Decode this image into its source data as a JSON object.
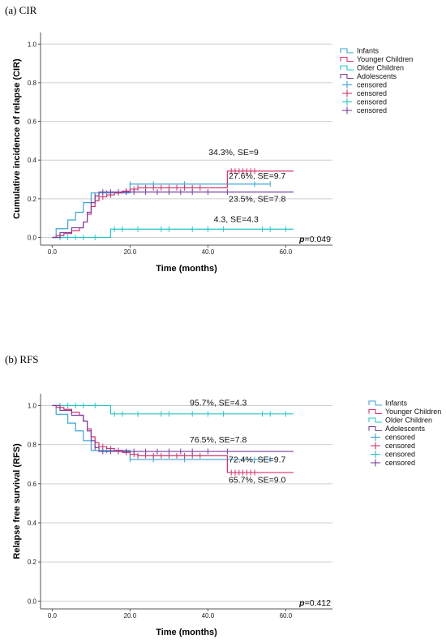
{
  "colors": {
    "infants": "#3aa6d6",
    "younger": "#d6336c",
    "older": "#26c6c6",
    "adolescents": "#7a3fa0",
    "grid": "#cfcfcf",
    "axis": "#555555"
  },
  "chart_data": [
    {
      "type": "line",
      "panel_label": "(a) CIR",
      "xlabel": "Time (months)",
      "ylabel": "Cumulative incidence of relapse (CIR)",
      "xlim": [
        -3,
        72
      ],
      "ylim": [
        -0.04,
        1.06
      ],
      "xticks": [
        "0.0",
        "20.0",
        "40.0",
        "60.0"
      ],
      "xtick_values": [
        0,
        20,
        40,
        60
      ],
      "yticks": [
        "0.0",
        "0.2",
        "0.4",
        "0.6",
        "0.8",
        "1.0"
      ],
      "ytick_values": [
        0,
        0.2,
        0.4,
        0.6,
        0.8,
        1.0
      ],
      "grid": "horizontal",
      "legend_position": "top-right",
      "legend": [
        {
          "label": "Infants",
          "kind": "line",
          "color_key": "infants"
        },
        {
          "label": "Younger Children",
          "kind": "line",
          "color_key": "younger"
        },
        {
          "label": "Older Children",
          "kind": "line",
          "color_key": "older"
        },
        {
          "label": "Adolescents",
          "kind": "line",
          "color_key": "adolescents"
        },
        {
          "label": "censored",
          "kind": "cross",
          "color_key": "infants"
        },
        {
          "label": "censored",
          "kind": "cross",
          "color_key": "younger"
        },
        {
          "label": "censored",
          "kind": "cross",
          "color_key": "older"
        },
        {
          "label": "censored",
          "kind": "cross",
          "color_key": "adolescents"
        }
      ],
      "series": [
        {
          "name": "Infants",
          "color_key": "infants",
          "x": [
            0,
            1,
            4,
            6,
            8,
            10,
            12,
            20,
            45,
            56
          ],
          "y": [
            0,
            0.045,
            0.09,
            0.13,
            0.18,
            0.23,
            0.23,
            0.276,
            0.276,
            0.276
          ],
          "censored_x": [
            14,
            20,
            26,
            34,
            45,
            52,
            56
          ]
        },
        {
          "name": "Younger Children",
          "color_key": "younger",
          "x": [
            0,
            1,
            3,
            5,
            7,
            8,
            9,
            10,
            11,
            12,
            14,
            16,
            18,
            20,
            22,
            35,
            45,
            62
          ],
          "y": [
            0,
            0.01,
            0.02,
            0.035,
            0.05,
            0.08,
            0.12,
            0.16,
            0.19,
            0.21,
            0.22,
            0.23,
            0.24,
            0.25,
            0.257,
            0.257,
            0.343,
            0.343
          ],
          "censored_x": [
            13,
            15,
            17,
            19,
            21,
            22,
            24,
            26,
            28,
            30,
            32,
            34,
            36,
            38,
            46,
            47,
            48,
            49,
            50,
            51,
            52
          ]
        },
        {
          "name": "Older Children",
          "color_key": "older",
          "x": [
            0,
            15,
            62
          ],
          "y": [
            0,
            0.043,
            0.043
          ],
          "censored_x": [
            2,
            4,
            6,
            8,
            11,
            16,
            18,
            22,
            28,
            30,
            36,
            40,
            44,
            54,
            56,
            60
          ]
        },
        {
          "name": "Adolescents",
          "color_key": "adolescents",
          "x": [
            0,
            2,
            5,
            8,
            9,
            10,
            11,
            12,
            20,
            62
          ],
          "y": [
            0,
            0.025,
            0.05,
            0.08,
            0.13,
            0.18,
            0.215,
            0.235,
            0.235,
            0.235
          ],
          "censored_x": [
            11,
            13,
            15,
            17,
            19,
            21,
            24,
            27,
            30,
            33,
            36,
            40,
            45
          ]
        }
      ],
      "annotations": [
        {
          "text": "34.3%, SE=9",
          "x": 53,
          "y": 0.425
        },
        {
          "text": "27.6%, SE=9.7",
          "x": 60,
          "y": 0.305
        },
        {
          "text": "23.5%, SE=7.8",
          "x": 60,
          "y": 0.185
        },
        {
          "text": "4.3, SE=4.3",
          "x": 53,
          "y": 0.08
        }
      ],
      "p_value": {
        "label": "p",
        "text": "=0.049"
      }
    },
    {
      "type": "line",
      "panel_label": "(b) RFS",
      "xlabel": "Time (months)",
      "ylabel": "Relapse free survival (RFS)",
      "xlim": [
        -3,
        72
      ],
      "ylim": [
        -0.04,
        1.06
      ],
      "xticks": [
        "0.0",
        "20.0",
        "40.0",
        "60.0"
      ],
      "xtick_values": [
        0,
        20,
        40,
        60
      ],
      "yticks": [
        "0.0",
        "0.2",
        "0.4",
        "0.6",
        "0.8",
        "1.0"
      ],
      "ytick_values": [
        0,
        0.2,
        0.4,
        0.6,
        0.8,
        1.0
      ],
      "grid": "horizontal",
      "legend_position": "top-right",
      "legend": [
        {
          "label": "Infants",
          "kind": "line",
          "color_key": "infants"
        },
        {
          "label": "Younger Children",
          "kind": "line",
          "color_key": "younger"
        },
        {
          "label": "Older Children",
          "kind": "line",
          "color_key": "older"
        },
        {
          "label": "Adolescents",
          "kind": "line",
          "color_key": "adolescents"
        },
        {
          "label": "censored",
          "kind": "cross",
          "color_key": "infants"
        },
        {
          "label": "censored",
          "kind": "cross",
          "color_key": "younger"
        },
        {
          "label": "censored",
          "kind": "cross",
          "color_key": "older"
        },
        {
          "label": "censored",
          "kind": "cross",
          "color_key": "adolescents"
        }
      ],
      "series": [
        {
          "name": "Infants",
          "color_key": "infants",
          "x": [
            0,
            1,
            4,
            6,
            8,
            10,
            12,
            20,
            56
          ],
          "y": [
            1,
            0.955,
            0.91,
            0.87,
            0.82,
            0.77,
            0.77,
            0.724,
            0.724
          ],
          "censored_x": [
            14,
            20,
            26,
            34,
            45,
            52,
            56
          ]
        },
        {
          "name": "Younger Children",
          "color_key": "younger",
          "x": [
            0,
            1,
            3,
            5,
            7,
            8,
            9,
            10,
            11,
            12,
            14,
            16,
            18,
            20,
            22,
            35,
            45,
            62
          ],
          "y": [
            1,
            0.99,
            0.98,
            0.965,
            0.95,
            0.92,
            0.88,
            0.84,
            0.81,
            0.79,
            0.78,
            0.77,
            0.76,
            0.75,
            0.743,
            0.743,
            0.657,
            0.657
          ],
          "censored_x": [
            13,
            15,
            17,
            19,
            21,
            22,
            24,
            26,
            28,
            30,
            32,
            34,
            36,
            38,
            46,
            47,
            48,
            49,
            50,
            51,
            52
          ]
        },
        {
          "name": "Older Children",
          "color_key": "older",
          "x": [
            0,
            15,
            62
          ],
          "y": [
            1,
            0.957,
            0.957
          ],
          "censored_x": [
            2,
            4,
            6,
            8,
            11,
            16,
            18,
            22,
            28,
            30,
            36,
            40,
            44,
            54,
            56,
            60
          ]
        },
        {
          "name": "Adolescents",
          "color_key": "adolescents",
          "x": [
            0,
            2,
            5,
            8,
            9,
            10,
            11,
            12,
            20,
            62
          ],
          "y": [
            1,
            0.975,
            0.95,
            0.92,
            0.87,
            0.82,
            0.785,
            0.765,
            0.765,
            0.765
          ],
          "censored_x": [
            11,
            13,
            15,
            17,
            19,
            21,
            24,
            27,
            30,
            33,
            36,
            40,
            45
          ]
        }
      ],
      "annotations": [
        {
          "text": "95.7%, SE=4.3",
          "x": 50,
          "y": 1.0
        },
        {
          "text": "76.5%, SE=7.8",
          "x": 50,
          "y": 0.81
        },
        {
          "text": "72.4%, SE=9.7",
          "x": 60,
          "y": 0.71
        },
        {
          "text": "65.7%, SE=9.0",
          "x": 60,
          "y": 0.605
        }
      ],
      "p_value": {
        "label": "p",
        "text": "=0.412"
      }
    }
  ]
}
